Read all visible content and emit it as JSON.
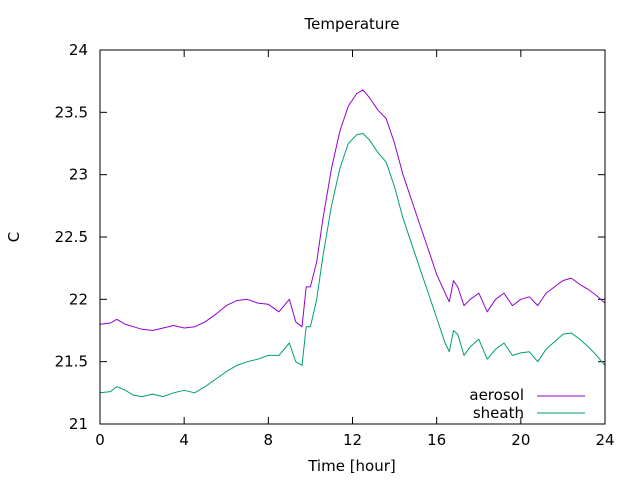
{
  "chart_data": {
    "type": "line",
    "title": "Temperature",
    "xlabel": "Time [hour]",
    "ylabel": "C",
    "xlim": [
      0,
      24
    ],
    "ylim": [
      21,
      24
    ],
    "x_ticks": [
      0,
      4,
      8,
      12,
      16,
      20,
      24
    ],
    "x_tick_labels": [
      "0",
      "4",
      "8",
      "12",
      "16",
      "20",
      "24"
    ],
    "y_ticks": [
      21,
      21.5,
      22,
      22.5,
      23,
      23.5,
      24
    ],
    "y_tick_labels": [
      "21",
      "21.5",
      "22",
      "22.5",
      "23",
      "23.5",
      "24"
    ],
    "grid": false,
    "legend_position": "bottom-right",
    "series": [
      {
        "name": "aerosol",
        "color": "#9400d3",
        "x": [
          0,
          0.5,
          0.8,
          1.2,
          1.6,
          2.0,
          2.5,
          3.0,
          3.5,
          4.0,
          4.5,
          5.0,
          5.5,
          6.0,
          6.5,
          7.0,
          7.5,
          8.0,
          8.5,
          9.0,
          9.3,
          9.6,
          9.8,
          10.0,
          10.3,
          10.6,
          11.0,
          11.4,
          11.8,
          12.2,
          12.5,
          12.8,
          13.2,
          13.6,
          14.0,
          14.4,
          14.8,
          15.2,
          15.6,
          16.0,
          16.4,
          16.6,
          16.8,
          17.0,
          17.3,
          17.6,
          18.0,
          18.4,
          18.8,
          19.2,
          19.6,
          20.0,
          20.4,
          20.8,
          21.2,
          21.6,
          22.0,
          22.4,
          22.8,
          23.2,
          23.6,
          24.0
        ],
        "y": [
          21.8,
          21.81,
          21.84,
          21.8,
          21.78,
          21.76,
          21.75,
          21.77,
          21.79,
          21.77,
          21.78,
          21.82,
          21.88,
          21.95,
          21.99,
          22.0,
          21.97,
          21.96,
          21.9,
          22.0,
          21.82,
          21.78,
          22.1,
          22.1,
          22.3,
          22.65,
          23.05,
          23.35,
          23.55,
          23.65,
          23.68,
          23.62,
          23.52,
          23.45,
          23.25,
          23.0,
          22.8,
          22.6,
          22.4,
          22.2,
          22.05,
          21.98,
          22.15,
          22.1,
          21.95,
          22.0,
          22.05,
          21.9,
          22.0,
          22.05,
          21.95,
          22.0,
          22.02,
          21.95,
          22.05,
          22.1,
          22.15,
          22.17,
          22.12,
          22.08,
          22.03,
          21.97
        ]
      },
      {
        "name": "sheath",
        "color": "#009e73",
        "x": [
          0,
          0.5,
          0.8,
          1.2,
          1.6,
          2.0,
          2.5,
          3.0,
          3.5,
          4.0,
          4.5,
          5.0,
          5.5,
          6.0,
          6.5,
          7.0,
          7.5,
          8.0,
          8.5,
          9.0,
          9.3,
          9.6,
          9.8,
          10.0,
          10.3,
          10.6,
          11.0,
          11.4,
          11.8,
          12.2,
          12.5,
          12.8,
          13.2,
          13.6,
          14.0,
          14.4,
          14.8,
          15.2,
          15.6,
          16.0,
          16.4,
          16.6,
          16.8,
          17.0,
          17.3,
          17.6,
          18.0,
          18.4,
          18.8,
          19.2,
          19.6,
          20.0,
          20.4,
          20.8,
          21.2,
          21.6,
          22.0,
          22.4,
          22.8,
          23.2,
          23.6,
          24.0
        ],
        "y": [
          21.25,
          21.26,
          21.3,
          21.27,
          21.23,
          21.22,
          21.24,
          21.22,
          21.25,
          21.27,
          21.25,
          21.3,
          21.36,
          21.42,
          21.47,
          21.5,
          21.52,
          21.55,
          21.55,
          21.65,
          21.5,
          21.47,
          21.78,
          21.78,
          22.0,
          22.35,
          22.75,
          23.05,
          23.25,
          23.32,
          23.33,
          23.28,
          23.18,
          23.1,
          22.9,
          22.65,
          22.45,
          22.25,
          22.05,
          21.85,
          21.65,
          21.58,
          21.75,
          21.72,
          21.55,
          21.62,
          21.68,
          21.52,
          21.6,
          21.65,
          21.55,
          21.57,
          21.58,
          21.5,
          21.6,
          21.66,
          21.72,
          21.73,
          21.68,
          21.62,
          21.55,
          21.47
        ]
      }
    ]
  }
}
